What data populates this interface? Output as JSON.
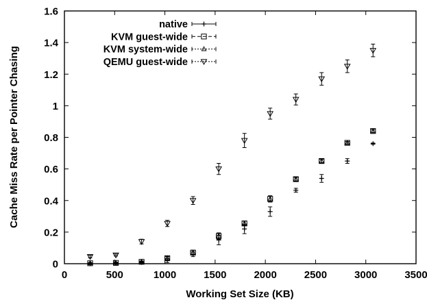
{
  "chart_data": {
    "type": "scatter",
    "title": "",
    "xlabel": "Working Set Size (KB)",
    "ylabel": "Cache Miss Rate per Pointer Chasing",
    "xlim": [
      0,
      3500
    ],
    "ylim": [
      0,
      1.6
    ],
    "xticks": [
      "0",
      "500",
      "1000",
      "1500",
      "2000",
      "2500",
      "3000",
      "3500"
    ],
    "yticks": [
      "0",
      "0.2",
      "0.4",
      "0.6",
      "0.8",
      "1",
      "1.2",
      "1.4",
      "1.6"
    ],
    "grid": false,
    "legend_position": "top-left",
    "error_bars": true,
    "series": [
      {
        "name": "native",
        "marker": "plus",
        "line_style": "solid",
        "points": [
          {
            "x": 256,
            "y": 0.0,
            "err": 0.003
          },
          {
            "x": 512,
            "y": 0.002,
            "err": 0.003
          },
          {
            "x": 768,
            "y": 0.008,
            "err": 0.005
          },
          {
            "x": 1024,
            "y": 0.02,
            "err": 0.012
          },
          {
            "x": 1280,
            "y": 0.06,
            "err": 0.015
          },
          {
            "x": 1536,
            "y": 0.15,
            "err": 0.03
          },
          {
            "x": 1792,
            "y": 0.22,
            "err": 0.03
          },
          {
            "x": 2048,
            "y": 0.33,
            "err": 0.03
          },
          {
            "x": 2304,
            "y": 0.465,
            "err": 0.012
          },
          {
            "x": 2560,
            "y": 0.54,
            "err": 0.025
          },
          {
            "x": 2816,
            "y": 0.65,
            "err": 0.015
          },
          {
            "x": 3072,
            "y": 0.76,
            "err": 0.004
          }
        ]
      },
      {
        "name": "KVM guest-wide",
        "marker": "square",
        "line_style": "dashed",
        "points": [
          {
            "x": 256,
            "y": 0.003,
            "err": 0.004
          },
          {
            "x": 512,
            "y": 0.005,
            "err": 0.004
          },
          {
            "x": 768,
            "y": 0.012,
            "err": 0.005
          },
          {
            "x": 1024,
            "y": 0.035,
            "err": 0.01
          },
          {
            "x": 1280,
            "y": 0.07,
            "err": 0.015
          },
          {
            "x": 1536,
            "y": 0.175,
            "err": 0.02
          },
          {
            "x": 1792,
            "y": 0.255,
            "err": 0.015
          },
          {
            "x": 2048,
            "y": 0.41,
            "err": 0.02
          },
          {
            "x": 2304,
            "y": 0.535,
            "err": 0.012
          },
          {
            "x": 2560,
            "y": 0.65,
            "err": 0.012
          },
          {
            "x": 2816,
            "y": 0.765,
            "err": 0.008
          },
          {
            "x": 3072,
            "y": 0.84,
            "err": 0.01
          }
        ]
      },
      {
        "name": "KVM system-wide",
        "marker": "triangle-up",
        "line_style": "dotted",
        "points": [
          {
            "x": 256,
            "y": 0.003,
            "err": 0.004
          },
          {
            "x": 512,
            "y": 0.005,
            "err": 0.004
          },
          {
            "x": 768,
            "y": 0.012,
            "err": 0.005
          },
          {
            "x": 1024,
            "y": 0.035,
            "err": 0.01
          },
          {
            "x": 1280,
            "y": 0.07,
            "err": 0.015
          },
          {
            "x": 1536,
            "y": 0.175,
            "err": 0.02
          },
          {
            "x": 1792,
            "y": 0.255,
            "err": 0.015
          },
          {
            "x": 2048,
            "y": 0.41,
            "err": 0.02
          },
          {
            "x": 2304,
            "y": 0.535,
            "err": 0.012
          },
          {
            "x": 2560,
            "y": 0.65,
            "err": 0.012
          },
          {
            "x": 2816,
            "y": 0.765,
            "err": 0.008
          },
          {
            "x": 3072,
            "y": 0.84,
            "err": 0.01
          }
        ]
      },
      {
        "name": "QEMU guest-wide",
        "marker": "triangle-down",
        "line_style": "dotted",
        "points": [
          {
            "x": 256,
            "y": 0.045,
            "err": 0.008
          },
          {
            "x": 512,
            "y": 0.055,
            "err": 0.006
          },
          {
            "x": 768,
            "y": 0.14,
            "err": 0.015
          },
          {
            "x": 1024,
            "y": 0.255,
            "err": 0.02
          },
          {
            "x": 1280,
            "y": 0.4,
            "err": 0.025
          },
          {
            "x": 1536,
            "y": 0.6,
            "err": 0.035
          },
          {
            "x": 1792,
            "y": 0.78,
            "err": 0.045
          },
          {
            "x": 2048,
            "y": 0.95,
            "err": 0.035
          },
          {
            "x": 2304,
            "y": 1.04,
            "err": 0.035
          },
          {
            "x": 2560,
            "y": 1.17,
            "err": 0.04
          },
          {
            "x": 2816,
            "y": 1.25,
            "err": 0.04
          },
          {
            "x": 3072,
            "y": 1.35,
            "err": 0.04
          }
        ]
      }
    ]
  }
}
